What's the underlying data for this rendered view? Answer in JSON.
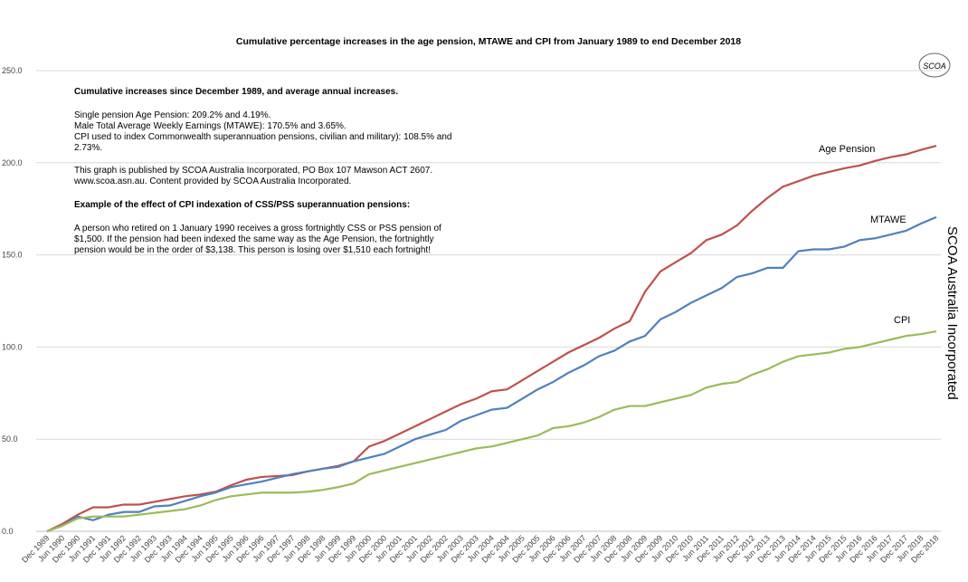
{
  "chart_data": {
    "type": "line",
    "title": "Cumulative percentage increases in the age pension, MTAWE and CPI from January 1989 to end December 2018",
    "side_label": "SCOA Australia Incorporated",
    "logo": "SCOA",
    "notes": [
      {
        "text": "Cumulative increases since December 1989, and average annual increases.",
        "bold": true
      },
      {
        "text": "Single pension Age Pension: 209.2% and 4.19%.",
        "bold": false
      },
      {
        "text": "Male Total Average Weekly Earnings (MTAWE): 170.5% and 3.65%.",
        "bold": false
      },
      {
        "text": "CPI used to index Commonwealth superannuation pensions, civilian and military): 108.5% and",
        "bold": false
      },
      {
        "text": "2.73%.",
        "bold": false
      },
      {
        "text": "This graph is published by SCOA Australia Incorporated,  PO Box 107 Mawson ACT 2607.",
        "bold": false
      },
      {
        "text": "www.scoa.asn.au.  Content provided by SCOA Australia Incorporated.",
        "bold": false
      },
      {
        "text": "Example of the effect of CPI indexation of CSS/PSS superannuation pensions:",
        "bold": true
      },
      {
        "text": "A person who retired on 1 January 1990 receives a gross fortnightly  CSS or PSS pension of",
        "bold": false
      },
      {
        "text": "$1,500.  If the pension had been indexed the same way as the Age Pension, the fortnightly",
        "bold": false
      },
      {
        "text": "pension would be in the order of $3,138. This person is losing over $1,510 each fortnight!",
        "bold": false
      }
    ],
    "categories": [
      "Dec 1989",
      "Jun 1990",
      "Dec 1990",
      "Jun 1991",
      "Dec 1991",
      "Jun 1992",
      "Dec 1992",
      "Jun 1993",
      "Dec 1993",
      "Jun 1994",
      "Dec 1994",
      "Jun 1995",
      "Dec 1995",
      "Jun 1996",
      "Dec 1996",
      "Jun 1997",
      "Dec 1997",
      "Jun 1998",
      "Dec 1998",
      "Jun 1999",
      "Dec 1999",
      "Jun 2000",
      "Dec 2000",
      "Jun 2001",
      "Dec 2001",
      "Jun 2002",
      "Dec 2002",
      "Jun 2003",
      "Dec 2003",
      "Jun 2004",
      "Dec 2004",
      "Jun 2005",
      "Dec 2005",
      "Jun 2006",
      "Dec 2006",
      "Jun 2007",
      "Dec 2007",
      "Jun 2008",
      "Dec 2008",
      "Jun 2009",
      "Dec 2009",
      "Jun 2010",
      "Dec 2010",
      "Jun 2011",
      "Dec 2011",
      "Jun 2012",
      "Dec 2012",
      "Jun 2013",
      "Dec 2013",
      "Jun 2014",
      "Dec 2014",
      "Jun 2015",
      "Dec 2015",
      "Jun 2016",
      "Dec 2016",
      "Jun 2017",
      "Dec 2017",
      "Jun 2018",
      "Dec 2018"
    ],
    "series": [
      {
        "name": "Age Pension",
        "color": "#c0504d",
        "values": [
          0,
          4,
          9,
          13,
          13,
          14.5,
          14.5,
          16,
          17.5,
          19,
          20,
          21.5,
          25,
          28,
          29.5,
          30,
          30.5,
          32.5,
          34,
          35.5,
          38,
          46,
          49,
          53,
          57,
          61,
          65,
          69,
          72,
          76,
          77,
          82,
          87,
          92,
          97,
          101,
          105,
          110,
          114,
          130,
          141,
          146,
          151,
          158,
          161,
          166,
          174,
          181,
          187,
          190,
          193,
          195,
          197,
          198.5,
          201,
          203,
          204.5,
          207,
          209.2
        ]
      },
      {
        "name": "MTAWE",
        "color": "#4f81bd",
        "values": [
          0,
          3,
          8,
          6,
          9,
          10.5,
          10.5,
          13.5,
          14,
          16.5,
          19,
          21,
          24,
          25.5,
          27,
          29,
          31,
          32.5,
          34,
          35,
          38,
          40,
          42,
          46,
          50,
          52.5,
          55,
          60,
          63,
          66,
          67,
          72,
          77,
          81,
          86,
          90,
          95,
          98,
          103,
          106,
          115,
          119,
          124,
          128,
          132,
          138,
          140,
          143,
          143,
          152,
          153,
          153,
          154.5,
          158,
          159,
          161,
          163,
          167,
          170.5
        ]
      },
      {
        "name": "CPI",
        "color": "#9bbb59",
        "values": [
          0,
          3,
          7,
          8,
          8,
          8,
          9,
          10,
          11,
          12,
          14,
          17,
          19,
          20,
          21,
          21,
          21,
          21.5,
          22.5,
          24,
          26,
          31,
          33,
          35,
          37,
          39,
          41,
          43,
          45,
          46,
          48,
          50,
          52,
          56,
          57,
          59,
          62,
          66,
          68,
          68,
          70,
          72,
          74,
          78,
          80,
          81,
          85,
          88,
          92,
          95,
          96,
          97,
          99,
          100,
          102,
          104,
          106,
          107,
          108.5
        ]
      }
    ],
    "ylim": [
      0,
      250
    ],
    "yticks": [
      {
        "value": 0,
        "label": "0.0"
      },
      {
        "value": 50,
        "label": "50.0"
      },
      {
        "value": 100,
        "label": "100.0"
      },
      {
        "value": 150,
        "label": "150.0"
      },
      {
        "value": 200,
        "label": "200.0"
      },
      {
        "value": 250,
        "label": "250.0"
      }
    ],
    "grid": true
  }
}
